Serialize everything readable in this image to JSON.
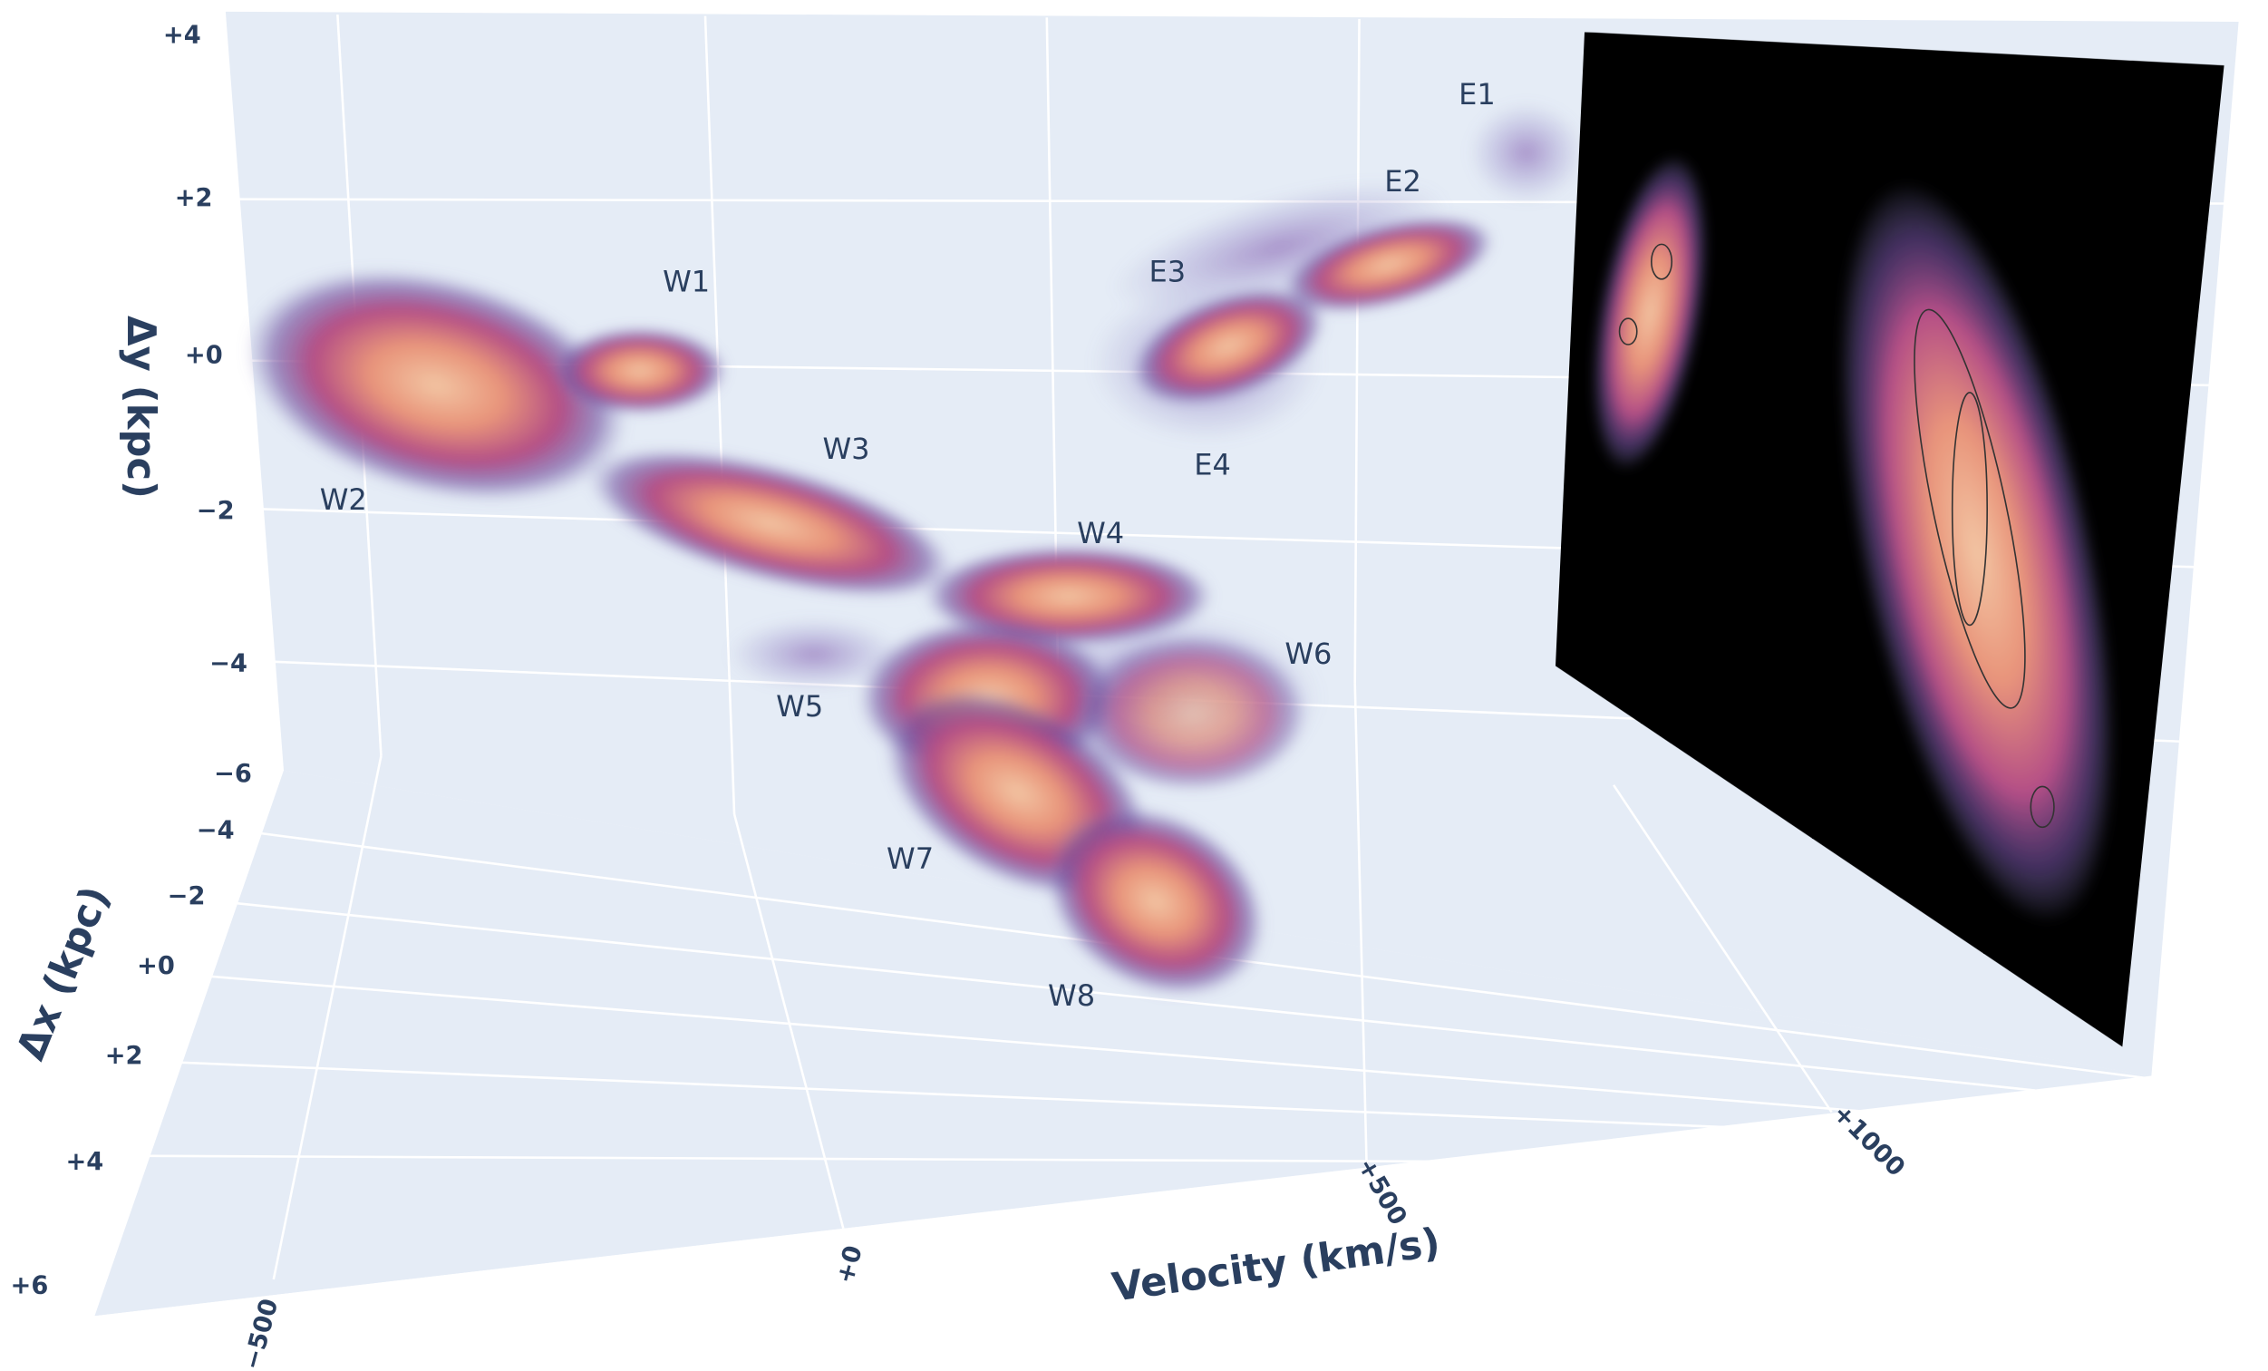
{
  "axes": {
    "y": {
      "title": "Δy (kpc)",
      "ticks": [
        "+4",
        "+2",
        "+0",
        "−2",
        "−4",
        "−6"
      ]
    },
    "x": {
      "title": "Δx (kpc)",
      "ticks": [
        "−4",
        "−2",
        "+0",
        "+2",
        "+4",
        "+6"
      ]
    },
    "velocity": {
      "title": "Velocity (km/s)",
      "ticks": [
        "−500",
        "+0",
        "+500",
        "+1000"
      ]
    }
  },
  "labels": [
    "W1",
    "W2",
    "W3",
    "W4",
    "W5",
    "W6",
    "W7",
    "W8",
    "E1",
    "E2",
    "E3",
    "E4"
  ]
}
